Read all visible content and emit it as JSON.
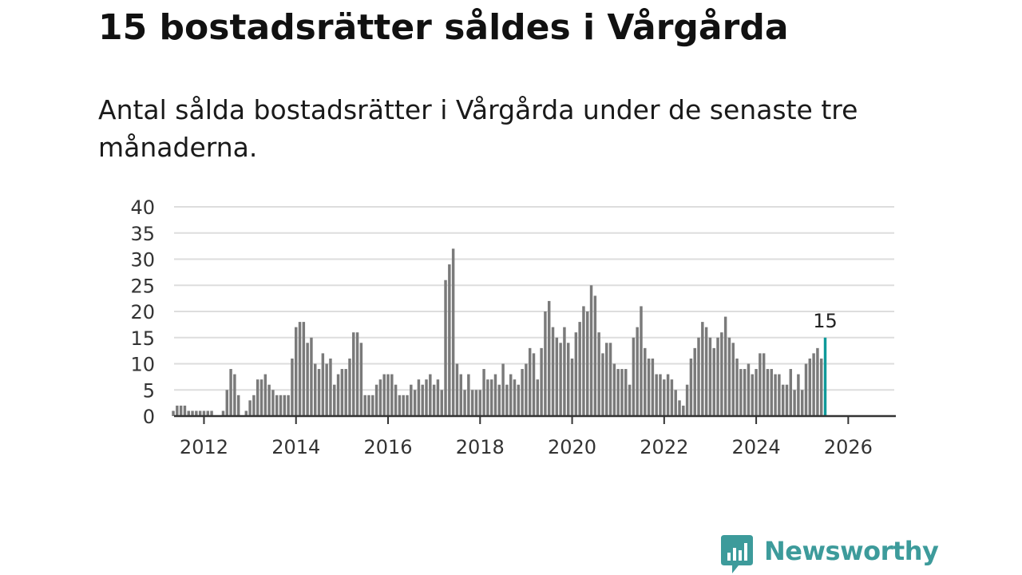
{
  "header": {
    "title": "15 bostadsrätter såldes i Vårgårda",
    "subtitle": "Antal sålda bostadsrätter i Vårgårda under de senaste tre månaderna."
  },
  "brand": {
    "name": "Newsworthy",
    "color": "#3d9b9b",
    "icon": "newsworthy-logo-icon"
  },
  "colors": {
    "bar": "#7a7a7a",
    "highlight": "#0f9a9a",
    "grid": "#dddddd",
    "axis": "#333333"
  },
  "chart_data": {
    "type": "bar",
    "title": "Antal sålda bostadsrätter i Vårgårda",
    "xlabel": "",
    "ylabel": "",
    "ylim": [
      0,
      40
    ],
    "yticks": [
      "0",
      "5",
      "10",
      "15",
      "20",
      "25",
      "30",
      "35",
      "40"
    ],
    "xticks": [
      "2012",
      "2014",
      "2016",
      "2018",
      "2020",
      "2022",
      "2024",
      "2026"
    ],
    "xlim": [
      2011.35,
      2027.0
    ],
    "grid": true,
    "start": 2011.0,
    "step": 0.08333,
    "highlight_label": "15",
    "values": [
      0,
      0,
      0,
      0,
      1,
      2,
      2,
      2,
      1,
      1,
      1,
      1,
      1,
      1,
      1,
      0,
      0,
      1,
      5,
      9,
      8,
      4,
      0,
      1,
      3,
      4,
      7,
      7,
      8,
      6,
      5,
      4,
      4,
      4,
      4,
      11,
      17,
      18,
      18,
      14,
      15,
      10,
      9,
      12,
      10,
      11,
      6,
      8,
      9,
      9,
      11,
      16,
      16,
      14,
      4,
      4,
      4,
      6,
      7,
      8,
      8,
      8,
      6,
      4,
      4,
      4,
      6,
      5,
      7,
      6,
      7,
      8,
      6,
      7,
      5,
      26,
      29,
      32,
      10,
      8,
      5,
      8,
      5,
      5,
      5,
      9,
      7,
      7,
      8,
      6,
      10,
      6,
      8,
      7,
      6,
      9,
      10,
      13,
      12,
      7,
      13,
      20,
      22,
      17,
      15,
      14,
      17,
      14,
      11,
      16,
      18,
      21,
      20,
      25,
      23,
      16,
      12,
      14,
      14,
      10,
      9,
      9,
      9,
      6,
      15,
      17,
      21,
      13,
      11,
      11,
      8,
      8,
      7,
      8,
      7,
      5,
      3,
      2,
      6,
      11,
      13,
      15,
      18,
      17,
      15,
      13,
      15,
      16,
      19,
      15,
      14,
      11,
      9,
      9,
      10,
      8,
      9,
      12,
      12,
      9,
      9,
      8,
      8,
      6,
      6,
      9,
      5,
      8,
      5,
      10,
      11,
      12,
      13,
      11,
      15
    ]
  }
}
